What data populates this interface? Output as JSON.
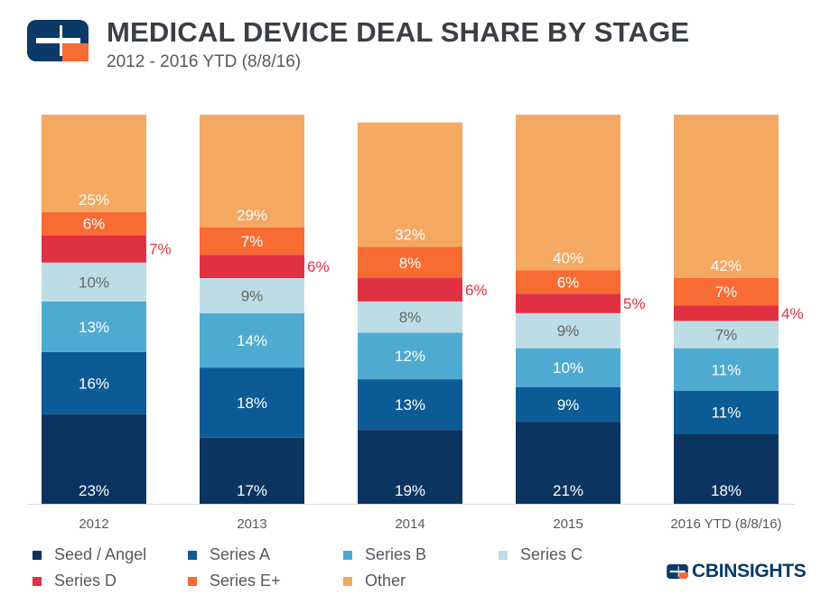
{
  "header": {
    "title": "MEDICAL DEVICE DEAL SHARE BY STAGE",
    "subtitle": "2012 - 2016 YTD  (8/8/16)"
  },
  "brand": {
    "text": "CBINSIGHTS"
  },
  "chart_data": {
    "type": "bar",
    "stacked": true,
    "ylim": [
      0,
      100
    ],
    "unit": "%",
    "categories": [
      "2012",
      "2013",
      "2014",
      "2015",
      "2016 YTD (8/8/16)"
    ],
    "series": [
      {
        "name": "Seed / Angel",
        "color": "#0b3460",
        "label_color": "#ffffff",
        "values": [
          23,
          17,
          19,
          21,
          18
        ]
      },
      {
        "name": "Series A",
        "color": "#0c5b96",
        "label_color": "#ffffff",
        "values": [
          16,
          18,
          13,
          9,
          11
        ]
      },
      {
        "name": "Series B",
        "color": "#4faad2",
        "label_color": "#ffffff",
        "values": [
          13,
          14,
          12,
          10,
          11
        ]
      },
      {
        "name": "Series C",
        "color": "#bcdde6",
        "label_color": "#666666",
        "values": [
          10,
          9,
          8,
          9,
          7
        ]
      },
      {
        "name": "Series D",
        "color": "#e03142",
        "label_color": "#e03142",
        "label_position": "outside-right",
        "values": [
          7,
          6,
          6,
          5,
          4
        ]
      },
      {
        "name": "Series E+",
        "color": "#f86b33",
        "label_color": "#ffffff",
        "values": [
          6,
          7,
          8,
          6,
          7
        ]
      },
      {
        "name": "Other",
        "color": "#f5a862",
        "label_color": "#ffffff",
        "values": [
          25,
          29,
          32,
          40,
          42
        ]
      }
    ]
  }
}
